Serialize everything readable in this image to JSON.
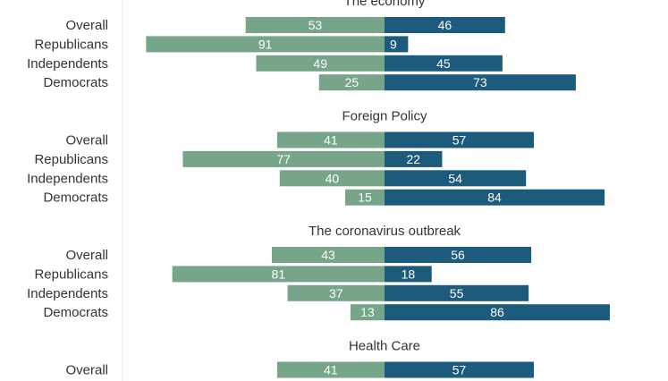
{
  "chart_data": {
    "type": "bar",
    "orientation": "horizontal-diverging",
    "grid": false,
    "legend": "none",
    "xlim": [
      -100,
      100
    ],
    "colors": {
      "left": "#76a58a",
      "right": "#1d5b7d"
    },
    "groups": [
      {
        "title": "The economy",
        "categories": [
          "Overall",
          "Republicans",
          "Independents",
          "Democrats"
        ],
        "left_values": [
          53,
          91,
          49,
          25
        ],
        "right_values": [
          46,
          9,
          45,
          73
        ]
      },
      {
        "title": "Foreign Policy",
        "categories": [
          "Overall",
          "Republicans",
          "Independents",
          "Democrats"
        ],
        "left_values": [
          41,
          77,
          40,
          15
        ],
        "right_values": [
          57,
          22,
          54,
          84
        ]
      },
      {
        "title": "The coronavirus outbreak",
        "categories": [
          "Overall",
          "Republicans",
          "Independents",
          "Democrats"
        ],
        "left_values": [
          43,
          81,
          37,
          13
        ],
        "right_values": [
          56,
          18,
          55,
          86
        ]
      },
      {
        "title": "Health Care",
        "categories": [
          "Overall"
        ],
        "left_values": [
          41
        ],
        "right_values": [
          57
        ]
      }
    ]
  }
}
